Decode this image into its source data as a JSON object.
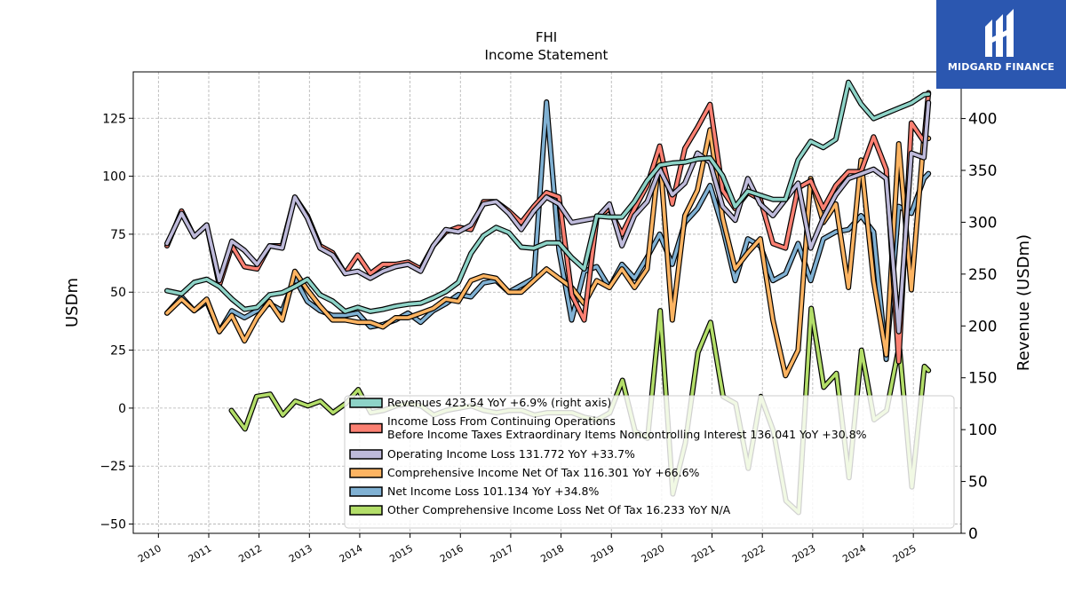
{
  "chart_data": {
    "type": "line",
    "title": "FHI",
    "subtitle": "Income Statement",
    "ylabel": "USDm",
    "y2label": "Revenue (USDm)",
    "ylim": [
      -54,
      145
    ],
    "y2lim": [
      0,
      445
    ],
    "xlim": [
      2009.5,
      2025.95
    ],
    "yticks": [
      -50,
      -25,
      0,
      25,
      50,
      75,
      100,
      125
    ],
    "y2ticks": [
      0,
      50,
      100,
      150,
      200,
      250,
      300,
      350,
      400
    ],
    "xticks": [
      "2010",
      "2011",
      "2012",
      "2013",
      "2014",
      "2015",
      "2016",
      "2017",
      "2018",
      "2019",
      "2020",
      "2021",
      "2022",
      "2023",
      "2024",
      "2025"
    ],
    "grid": true,
    "legend_position": "lower-right",
    "series": [
      {
        "name": "Revenues",
        "legend": "Revenues  423.54 YoY +6.9% (right axis)",
        "axis": "right",
        "color": "#8dd3c7",
        "x": [
          2010.17,
          2010.46,
          2010.71,
          2010.96,
          2011.21,
          2011.46,
          2011.71,
          2011.96,
          2012.21,
          2012.46,
          2012.71,
          2012.96,
          2013.21,
          2013.46,
          2013.71,
          2013.96,
          2014.21,
          2014.46,
          2014.71,
          2014.96,
          2015.21,
          2015.46,
          2015.71,
          2015.96,
          2016.21,
          2016.46,
          2016.71,
          2016.96,
          2017.21,
          2017.46,
          2017.71,
          2017.96,
          2018.21,
          2018.46,
          2018.71,
          2018.96,
          2019.21,
          2019.46,
          2019.71,
          2019.96,
          2020.21,
          2020.46,
          2020.71,
          2020.96,
          2021.21,
          2021.46,
          2021.71,
          2021.96,
          2022.21,
          2022.46,
          2022.71,
          2022.96,
          2023.21,
          2023.46,
          2023.71,
          2023.96,
          2024.21,
          2024.46,
          2024.71,
          2024.96,
          2025.21,
          2025.3
        ],
        "values": [
          234,
          231,
          242,
          245,
          238,
          226,
          216,
          218,
          230,
          232,
          238,
          245,
          230,
          224,
          214,
          218,
          214,
          216,
          219,
          221,
          222,
          227,
          233,
          242,
          270,
          287,
          295,
          290,
          276,
          275,
          280,
          280,
          266,
          255,
          306,
          305,
          305,
          320,
          340,
          355,
          357,
          358,
          361,
          362,
          345,
          315,
          330,
          326,
          322,
          322,
          360,
          378,
          372,
          380,
          435,
          414,
          400,
          405,
          410,
          415,
          423,
          423.54
        ]
      },
      {
        "name": "Income Loss From Continuing Operations Before Income Taxes Extraordinary Items Noncontrolling Interest",
        "legend": [
          "Income Loss From Continuing Operations",
          "Before Income Taxes Extraordinary Items Noncontrolling Interest  136.041 YoY +30.8%"
        ],
        "axis": "left",
        "color": "#fb8072",
        "x": [
          2010.17,
          2010.46,
          2010.71,
          2010.96,
          2011.21,
          2011.46,
          2011.71,
          2011.96,
          2012.21,
          2012.46,
          2012.71,
          2012.96,
          2013.21,
          2013.46,
          2013.71,
          2013.96,
          2014.21,
          2014.46,
          2014.71,
          2014.96,
          2015.21,
          2015.46,
          2015.71,
          2015.96,
          2016.21,
          2016.46,
          2016.71,
          2016.96,
          2017.21,
          2017.46,
          2017.71,
          2017.96,
          2018.21,
          2018.46,
          2018.71,
          2018.96,
          2019.21,
          2019.46,
          2019.71,
          2019.96,
          2020.21,
          2020.46,
          2020.71,
          2020.96,
          2021.21,
          2021.46,
          2021.71,
          2021.96,
          2022.21,
          2022.46,
          2022.71,
          2022.96,
          2023.21,
          2023.46,
          2023.71,
          2023.96,
          2024.21,
          2024.46,
          2024.71,
          2024.96,
          2025.21,
          2025.3
        ],
        "values": [
          70,
          85,
          74,
          79,
          53,
          70,
          61,
          60,
          70,
          70,
          91,
          83,
          70,
          67,
          58,
          66,
          58,
          62,
          62,
          63,
          60,
          70,
          76,
          78,
          77,
          89,
          89,
          85,
          80,
          87,
          93,
          91,
          49,
          38,
          82,
          86,
          75,
          86,
          96,
          113,
          88,
          112,
          121,
          131,
          94,
          86,
          93,
          90,
          71,
          69,
          95,
          98,
          86,
          96,
          102,
          102,
          117,
          103,
          20,
          123,
          115,
          136
        ]
      },
      {
        "name": "Operating Income Loss",
        "legend": "Operating Income Loss  131.772 YoY +33.7%",
        "axis": "left",
        "color": "#bebada",
        "x": [
          2010.17,
          2010.46,
          2010.71,
          2010.96,
          2011.21,
          2011.46,
          2011.71,
          2011.96,
          2012.21,
          2012.46,
          2012.71,
          2012.96,
          2013.21,
          2013.46,
          2013.71,
          2013.96,
          2014.21,
          2014.46,
          2014.71,
          2014.96,
          2015.21,
          2015.46,
          2015.71,
          2015.96,
          2016.21,
          2016.46,
          2016.71,
          2016.96,
          2017.21,
          2017.46,
          2017.71,
          2017.96,
          2018.21,
          2018.46,
          2018.71,
          2018.96,
          2019.21,
          2019.46,
          2019.71,
          2019.96,
          2020.21,
          2020.46,
          2020.71,
          2020.96,
          2021.21,
          2021.46,
          2021.71,
          2021.96,
          2022.21,
          2022.46,
          2022.71,
          2022.96,
          2023.21,
          2023.46,
          2023.71,
          2023.96,
          2024.21,
          2024.46,
          2024.71,
          2024.96,
          2025.21,
          2025.3
        ],
        "values": [
          71,
          84,
          74,
          79,
          55,
          72,
          68,
          62,
          70,
          69,
          91,
          82,
          69,
          66,
          58,
          59,
          56,
          59,
          61,
          62,
          59,
          70,
          77,
          76,
          79,
          88,
          89,
          84,
          77,
          85,
          91,
          88,
          80,
          81,
          82,
          88,
          70,
          83,
          89,
          103,
          92,
          97,
          110,
          106,
          87,
          81,
          99,
          88,
          83,
          90,
          97,
          69,
          82,
          92,
          99,
          101,
          103,
          99,
          33,
          110,
          108,
          131.772
        ]
      },
      {
        "name": "Comprehensive Income Net Of Tax",
        "legend": "Comprehensive Income Net Of Tax  116.301 YoY +66.6%",
        "axis": "left",
        "color": "#fdb462",
        "x": [
          2010.17,
          2010.46,
          2010.71,
          2010.96,
          2011.21,
          2011.46,
          2011.71,
          2011.96,
          2012.21,
          2012.46,
          2012.71,
          2012.96,
          2013.21,
          2013.46,
          2013.71,
          2013.96,
          2014.21,
          2014.46,
          2014.71,
          2014.96,
          2015.21,
          2015.46,
          2015.71,
          2015.96,
          2016.21,
          2016.46,
          2016.71,
          2016.96,
          2017.21,
          2017.46,
          2017.71,
          2017.96,
          2018.21,
          2018.46,
          2018.71,
          2018.96,
          2019.21,
          2019.46,
          2019.71,
          2019.96,
          2020.21,
          2020.46,
          2020.71,
          2020.96,
          2021.21,
          2021.46,
          2021.71,
          2021.96,
          2022.21,
          2022.46,
          2022.71,
          2022.96,
          2023.21,
          2023.46,
          2023.71,
          2023.96,
          2024.21,
          2024.46,
          2024.71,
          2024.96,
          2025.21,
          2025.3
        ],
        "values": [
          41,
          47,
          42,
          47,
          33,
          40,
          29,
          39,
          46,
          38,
          59,
          51,
          44,
          38,
          38,
          37,
          37,
          35,
          39,
          39,
          41,
          43,
          47,
          46,
          55,
          57,
          56,
          50,
          50,
          55,
          60,
          56,
          52,
          45,
          55,
          52,
          60,
          52,
          60,
          110,
          38,
          83,
          94,
          120,
          82,
          60,
          67,
          73,
          38,
          14,
          25,
          99,
          80,
          88,
          52,
          107,
          55,
          23,
          114,
          51,
          117,
          116.301
        ]
      },
      {
        "name": "Net Income Loss",
        "legend": "Net Income Loss  101.134 YoY +34.8%",
        "axis": "left",
        "color": "#80b1d3",
        "x": [
          2010.17,
          2010.46,
          2010.71,
          2010.96,
          2011.21,
          2011.46,
          2011.71,
          2011.96,
          2012.21,
          2012.46,
          2012.71,
          2012.96,
          2013.21,
          2013.46,
          2013.71,
          2013.96,
          2014.21,
          2014.46,
          2014.71,
          2014.96,
          2015.21,
          2015.46,
          2015.71,
          2015.96,
          2016.21,
          2016.46,
          2016.71,
          2016.96,
          2017.21,
          2017.46,
          2017.71,
          2017.96,
          2018.21,
          2018.46,
          2018.71,
          2018.96,
          2019.21,
          2019.46,
          2019.71,
          2019.96,
          2020.21,
          2020.46,
          2020.71,
          2020.96,
          2021.21,
          2021.46,
          2021.71,
          2021.96,
          2022.21,
          2022.46,
          2022.71,
          2022.96,
          2023.21,
          2023.46,
          2023.71,
          2023.96,
          2024.21,
          2024.46,
          2024.71,
          2024.96,
          2025.21,
          2025.3
        ],
        "values": [
          41,
          48,
          42,
          46,
          33,
          42,
          39,
          42,
          45,
          42,
          56,
          46,
          42,
          40,
          40,
          41,
          35,
          36,
          38,
          41,
          37,
          42,
          45,
          49,
          48,
          54,
          55,
          50,
          53,
          56,
          132,
          68,
          38,
          59,
          61,
          52,
          62,
          56,
          65,
          75,
          62,
          80,
          86,
          96,
          78,
          55,
          73,
          70,
          55,
          58,
          71,
          55,
          73,
          76,
          77,
          83,
          76,
          21,
          87,
          84,
          99,
          101.134
        ]
      },
      {
        "name": "Other Comprehensive Income Loss Net Of Tax",
        "legend": "Other Comprehensive Income Loss Net Of Tax  16.233 YoY N/A",
        "axis": "left",
        "color": "#b3de69",
        "x": [
          2011.45,
          2011.72,
          2011.95,
          2012.22,
          2012.47,
          2012.72,
          2012.97,
          2013.22,
          2013.47,
          2013.72,
          2013.97,
          2014.22,
          2014.47,
          2014.72,
          2014.97,
          2015.22,
          2015.47,
          2015.72,
          2015.97,
          2016.22,
          2016.47,
          2016.72,
          2016.97,
          2017.22,
          2017.47,
          2017.72,
          2017.97,
          2018.22,
          2018.47,
          2018.72,
          2018.97,
          2019.22,
          2019.47,
          2019.72,
          2019.97,
          2020.22,
          2020.47,
          2020.72,
          2020.97,
          2021.22,
          2021.47,
          2021.72,
          2021.97,
          2022.22,
          2022.47,
          2022.72,
          2022.97,
          2023.22,
          2023.47,
          2023.72,
          2023.97,
          2024.22,
          2024.47,
          2024.72,
          2024.97,
          2025.22,
          2025.3
        ],
        "values": [
          -1,
          -9,
          5,
          6,
          -3,
          3,
          1,
          3,
          -2,
          2,
          8,
          -2,
          -1,
          1,
          2,
          1,
          -3,
          -1,
          0,
          1,
          -1,
          -2,
          -1,
          -1,
          -3,
          -2,
          -2,
          -2,
          -4,
          -5,
          -2,
          12,
          -10,
          -13,
          42,
          -37,
          -15,
          24,
          37,
          5,
          2,
          -26,
          5,
          -10,
          -40,
          -45,
          43,
          9,
          15,
          -30,
          25,
          -5,
          -1,
          27,
          -34,
          18,
          16.233
        ]
      }
    ]
  },
  "branding": {
    "logo_text": "MIDGARD FINANCE"
  }
}
